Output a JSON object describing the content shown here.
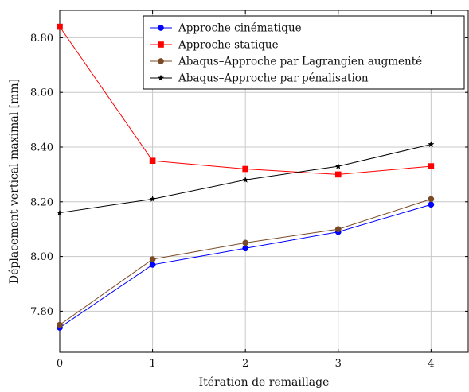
{
  "chart_data": {
    "type": "line",
    "xlabel": "Itération de remaillage",
    "ylabel": "Déplacement vertical maximal [mm]",
    "x": [
      0,
      1,
      2,
      3,
      4
    ],
    "x_ticks": [
      "0",
      "1",
      "2",
      "3",
      "4"
    ],
    "y_ticks": [
      7.8,
      8.0,
      8.2,
      8.4,
      8.6,
      8.8
    ],
    "y_tick_labels": [
      "7.80",
      "8.00",
      "8.20",
      "8.40",
      "8.60",
      "8.80"
    ],
    "xlim": [
      0,
      4.4
    ],
    "ylim": [
      7.65,
      8.9
    ],
    "grid": true,
    "legend_position": "top-right",
    "series": [
      {
        "name": "Approche cinématique",
        "values": [
          7.74,
          7.97,
          8.03,
          8.09,
          8.19
        ],
        "color": "#0000ff",
        "marker": "circle"
      },
      {
        "name": "Approche statique",
        "values": [
          8.84,
          8.35,
          8.32,
          8.3,
          8.33
        ],
        "color": "#ff0000",
        "marker": "square"
      },
      {
        "name": "Abaqus–Approche par Lagrangien augmenté",
        "values": [
          7.75,
          7.99,
          8.05,
          8.1,
          8.21
        ],
        "color": "#7a4a26",
        "marker": "circle"
      },
      {
        "name": "Abaqus–Approche par pénalisation",
        "values": [
          8.16,
          8.21,
          8.28,
          8.33,
          8.41
        ],
        "color": "#000000",
        "marker": "star"
      }
    ]
  }
}
